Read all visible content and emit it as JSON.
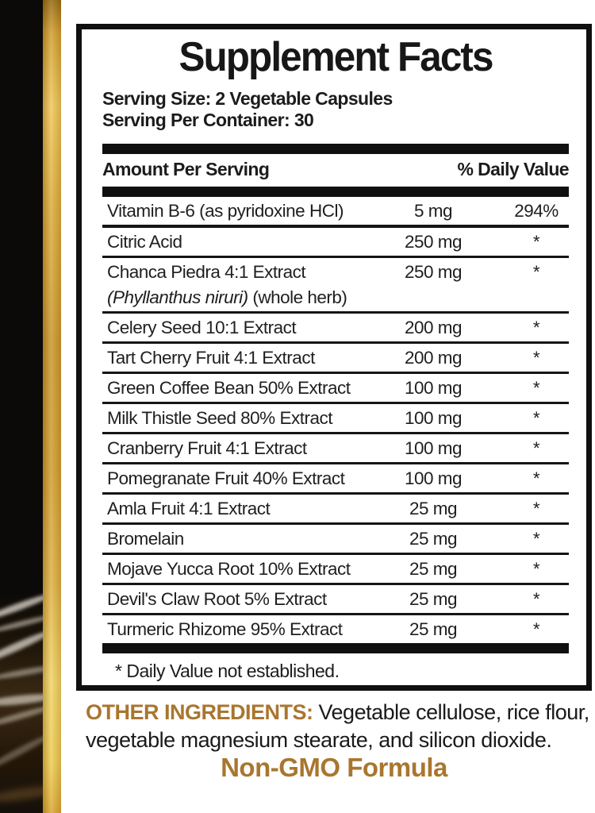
{
  "colors": {
    "gold_text": "#a9762f",
    "stripe_gold": "#c9952a",
    "ink": "#101010"
  },
  "panel": {
    "title": "Supplement Facts",
    "serving_size": "Serving Size: 2 Vegetable Capsules",
    "servings_per_container": "Serving Per Container: 30",
    "columns": {
      "amount_header": "Amount Per Serving",
      "dv_header": "% Daily Value"
    },
    "rows": [
      {
        "name": "Vitamin B-6 (as pyridoxine HCl)",
        "amount": "5 mg",
        "dv": "294%"
      },
      {
        "name": "Citric Acid",
        "amount": "250 mg",
        "dv": "*"
      },
      {
        "name": "Chanca Piedra 4:1 Extract",
        "amount": "250 mg",
        "dv": "*",
        "sub_italic": "(Phyllanthus niruri)",
        "sub_rest": " (whole herb)"
      },
      {
        "name": "Celery Seed 10:1 Extract",
        "amount": "200 mg",
        "dv": "*"
      },
      {
        "name": "Tart Cherry Fruit 4:1 Extract",
        "amount": "200 mg",
        "dv": "*"
      },
      {
        "name": "Green Coffee Bean 50% Extract",
        "amount": "100 mg",
        "dv": "*"
      },
      {
        "name": "Milk Thistle Seed 80% Extract",
        "amount": "100 mg",
        "dv": "*"
      },
      {
        "name": "Cranberry Fruit 4:1 Extract",
        "amount": "100 mg",
        "dv": "*"
      },
      {
        "name": "Pomegranate Fruit 40% Extract",
        "amount": "100 mg",
        "dv": "*"
      },
      {
        "name": "Amla Fruit 4:1 Extract",
        "amount": "25 mg",
        "dv": "*"
      },
      {
        "name": "Bromelain",
        "amount": "25 mg",
        "dv": "*"
      },
      {
        "name": "Mojave Yucca Root 10% Extract",
        "amount": "25 mg",
        "dv": "*"
      },
      {
        "name": "Devil's Claw Root 5% Extract",
        "amount": "25 mg",
        "dv": "*"
      },
      {
        "name": "Turmeric Rhizome 95% Extract",
        "amount": "25 mg",
        "dv": "*"
      }
    ],
    "footnote": "* Daily Value not established."
  },
  "other_ingredients": {
    "label": "OTHER INGREDIENTS:",
    "text": " Vegetable cellulose, rice flour,\nvegetable magnesium stearate, and silicon dioxide."
  },
  "non_gmo_text": "Non-GMO Formula"
}
